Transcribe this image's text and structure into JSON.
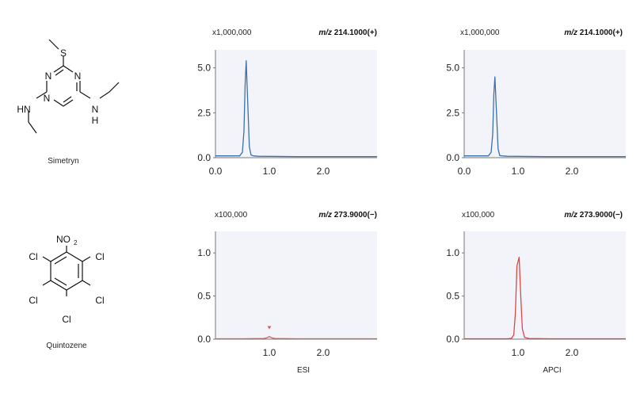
{
  "compounds": [
    {
      "name": "Simetryn",
      "atoms": {
        "s": "S",
        "n_top": "N",
        "n_left": "N",
        "n_right": "N",
        "hn": "HN",
        "nh_n": "N",
        "nh_h": "H"
      }
    },
    {
      "name": "Quintozene",
      "atoms": {
        "no2": "NO",
        "no2_sub": "2",
        "cl": "Cl"
      }
    }
  ],
  "column_labels": [
    "ESI",
    "APCI"
  ],
  "chart_data": [
    {
      "type": "line",
      "multiplier": "x1,000,000",
      "ion_prefix": "m/z",
      "ion": "214.1000(+)",
      "color": "#3d6faa",
      "xlim": [
        0,
        3.0
      ],
      "ylim": [
        0,
        6.0
      ],
      "xticks": [
        "0.0",
        "1.0",
        "2.0"
      ],
      "xtick_values": [
        0.0,
        1.0,
        2.0
      ],
      "yticks": [
        "0.0",
        "2.5",
        "5.0"
      ],
      "ytick_values": [
        0.0,
        2.5,
        5.0
      ],
      "series": [
        {
          "x": [
            0.0,
            0.45,
            0.5,
            0.53,
            0.55,
            0.57,
            0.6,
            0.63,
            0.66,
            0.7,
            0.8,
            1.5,
            3.0
          ],
          "y": [
            0.1,
            0.1,
            0.3,
            1.5,
            4.0,
            5.4,
            3.0,
            0.6,
            0.15,
            0.1,
            0.08,
            0.06,
            0.06
          ]
        }
      ]
    },
    {
      "type": "line",
      "multiplier": "x1,000,000",
      "ion_prefix": "m/z",
      "ion": "214.1000(+)",
      "color": "#3d6faa",
      "xlim": [
        0,
        3.0
      ],
      "ylim": [
        0,
        6.0
      ],
      "xticks": [
        "0.0",
        "1.0",
        "2.0"
      ],
      "xtick_values": [
        0.0,
        1.0,
        2.0
      ],
      "yticks": [
        "0.0",
        "2.5",
        "5.0"
      ],
      "ytick_values": [
        0.0,
        2.5,
        5.0
      ],
      "series": [
        {
          "x": [
            0.0,
            0.45,
            0.5,
            0.53,
            0.55,
            0.57,
            0.6,
            0.63,
            0.66,
            0.7,
            0.8,
            1.5,
            3.0
          ],
          "y": [
            0.1,
            0.1,
            0.3,
            1.3,
            3.5,
            4.5,
            2.5,
            0.5,
            0.12,
            0.1,
            0.08,
            0.06,
            0.06
          ]
        }
      ]
    },
    {
      "type": "line",
      "multiplier": "x100,000",
      "ion_prefix": "m/z",
      "ion": "273.9000(−)",
      "color": "#d06060",
      "marker": {
        "x": 1.0,
        "y": 0.06
      },
      "xlim": [
        0,
        3.0
      ],
      "ylim": [
        0,
        1.25
      ],
      "xticks": [
        "1.0",
        "2.0"
      ],
      "xtick_values": [
        1.0,
        2.0
      ],
      "yticks": [
        "0.0",
        "0.5",
        "1.0"
      ],
      "ytick_values": [
        0.0,
        0.5,
        1.0
      ],
      "series": [
        {
          "x": [
            0.0,
            0.5,
            0.9,
            0.95,
            1.0,
            1.05,
            1.1,
            1.5,
            3.0
          ],
          "y": [
            0.005,
            0.005,
            0.008,
            0.015,
            0.03,
            0.015,
            0.008,
            0.005,
            0.005
          ]
        }
      ]
    },
    {
      "type": "line",
      "multiplier": "x100,000",
      "ion_prefix": "m/z",
      "ion": "273.9000(−)",
      "color": "#d84848",
      "xlim": [
        0,
        3.0
      ],
      "ylim": [
        0,
        1.25
      ],
      "xticks": [
        "1.0",
        "2.0"
      ],
      "xtick_values": [
        1.0,
        2.0
      ],
      "yticks": [
        "0.0",
        "0.5",
        "1.0"
      ],
      "ytick_values": [
        0.0,
        0.5,
        1.0
      ],
      "series": [
        {
          "x": [
            0.0,
            0.8,
            0.88,
            0.92,
            0.95,
            0.98,
            1.02,
            1.05,
            1.08,
            1.12,
            1.2,
            1.6,
            3.0
          ],
          "y": [
            0.005,
            0.005,
            0.01,
            0.05,
            0.3,
            0.85,
            0.95,
            0.5,
            0.12,
            0.02,
            0.008,
            0.005,
            0.005
          ]
        }
      ]
    }
  ]
}
